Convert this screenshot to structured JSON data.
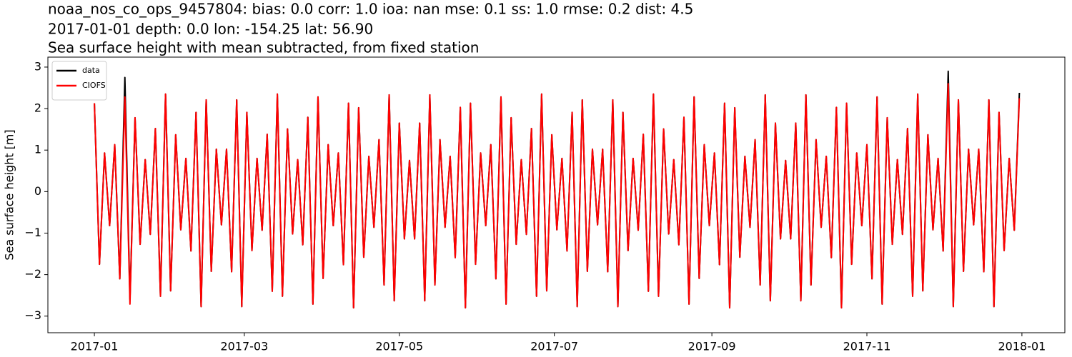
{
  "chart_data": {
    "type": "line",
    "title": [
      "noaa_nos_co_ops_9457804: bias: 0.0  corr: 1.0  ioa: nan  mse: 0.1  ss: 1.0  rmse: 0.2  dist: 4.5",
      "2017-01-01 depth: 0.0 lon: -154.25 lat: 56.90",
      "Sea surface height with mean subtracted, from fixed station"
    ],
    "y_label": "Sea surface height [m]",
    "legend": "upper left",
    "grid": false,
    "xlim": [
      -18.3,
      381.9
    ],
    "xticks": [
      {
        "value": 0,
        "label": "2017-01"
      },
      {
        "value": 59,
        "label": "2017-03"
      },
      {
        "value": 120,
        "label": "2017-05"
      },
      {
        "value": 181,
        "label": "2017-07"
      },
      {
        "value": 243,
        "label": "2017-09"
      },
      {
        "value": 304,
        "label": "2017-11"
      },
      {
        "value": 365,
        "label": "2018-01"
      }
    ],
    "ylim": [
      -3.4,
      3.24
    ],
    "yticks": [
      {
        "value": -3,
        "label": "−3"
      },
      {
        "value": -2,
        "label": "−2"
      },
      {
        "value": -1,
        "label": "−1"
      },
      0,
      1,
      2,
      3
    ],
    "x": [
      0,
      2,
      4,
      6,
      8,
      10,
      12,
      14,
      16,
      18,
      20,
      22,
      24,
      26,
      28,
      30,
      32,
      34,
      36,
      38,
      40,
      42,
      44,
      46,
      48,
      50,
      52,
      54,
      56,
      58,
      60,
      62,
      64,
      66,
      68,
      70,
      72,
      74,
      76,
      78,
      80,
      82,
      84,
      86,
      88,
      90,
      92,
      94,
      96,
      98,
      100,
      102,
      104,
      106,
      108,
      110,
      112,
      114,
      116,
      118,
      120,
      122,
      124,
      126,
      128,
      130,
      132,
      134,
      136,
      138,
      140,
      142,
      144,
      146,
      148,
      150,
      152,
      154,
      156,
      158,
      160,
      162,
      164,
      166,
      168,
      170,
      172,
      174,
      176,
      178,
      180,
      182,
      184,
      186,
      188,
      190,
      192,
      194,
      196,
      198,
      200,
      202,
      204,
      206,
      208,
      210,
      212,
      214,
      216,
      218,
      220,
      222,
      224,
      226,
      228,
      230,
      232,
      234,
      236,
      238,
      240,
      242,
      244,
      246,
      248,
      250,
      252,
      254,
      256,
      258,
      260,
      262,
      264,
      266,
      268,
      270,
      272,
      274,
      276,
      278,
      280,
      282,
      284,
      286,
      288,
      290,
      292,
      294,
      296,
      298,
      300,
      302,
      304,
      306,
      308,
      310,
      312,
      314,
      316,
      318,
      320,
      322,
      324,
      326,
      328,
      330,
      332,
      334,
      336,
      338,
      340,
      342,
      344,
      346,
      348,
      350,
      352,
      354,
      356,
      358,
      360,
      362,
      364
    ],
    "series": [
      {
        "name": "data",
        "color": "#000000",
        "values": [
          2.13,
          -1.75,
          0.93,
          -0.82,
          1.13,
          -2.1,
          2.75,
          -2.6,
          1.78,
          -1.27,
          0.77,
          -1.03,
          1.52,
          -2.52,
          2.35,
          -2.39,
          1.37,
          -0.92,
          0.8,
          -1.43,
          1.91,
          -2.77,
          2.21,
          -1.92,
          1.02,
          -0.8,
          1.02,
          -1.93,
          2.21,
          -2.77,
          1.91,
          -1.42,
          0.8,
          -0.93,
          1.38,
          -2.4,
          2.35,
          -2.52,
          1.51,
          -1.02,
          0.77,
          -1.28,
          1.79,
          -2.71,
          2.28,
          -2.09,
          1.13,
          -0.82,
          0.93,
          -1.76,
          2.13,
          -2.8,
          2.02,
          -1.58,
          0.85,
          -0.86,
          1.25,
          -2.25,
          2.33,
          -2.63,
          1.65,
          -1.14,
          0.75,
          -1.14,
          1.65,
          -2.63,
          2.33,
          -2.25,
          1.25,
          -0.86,
          0.85,
          -1.59,
          2.03,
          -2.8,
          2.13,
          -1.75,
          0.93,
          -0.82,
          1.13,
          -2.1,
          2.28,
          -2.71,
          1.78,
          -1.27,
          0.77,
          -1.03,
          1.52,
          -2.52,
          2.35,
          -2.39,
          1.37,
          -0.92,
          0.8,
          -1.43,
          1.91,
          -2.77,
          2.21,
          -1.92,
          1.02,
          -0.8,
          1.02,
          -1.93,
          2.21,
          -2.77,
          1.91,
          -1.42,
          0.8,
          -0.93,
          1.38,
          -2.4,
          2.35,
          -2.52,
          1.51,
          -1.02,
          0.77,
          -1.28,
          1.79,
          -2.71,
          2.28,
          -2.09,
          1.13,
          -0.82,
          0.93,
          -1.76,
          2.13,
          -2.8,
          2.02,
          -1.58,
          0.85,
          -0.86,
          1.25,
          -2.25,
          2.33,
          -2.63,
          1.65,
          -1.14,
          0.75,
          -1.14,
          1.65,
          -2.63,
          2.33,
          -2.25,
          1.25,
          -0.86,
          0.85,
          -1.59,
          2.03,
          -2.8,
          2.13,
          -1.75,
          0.93,
          -0.82,
          1.13,
          -2.1,
          2.28,
          -2.71,
          1.78,
          -1.27,
          0.77,
          -1.03,
          1.52,
          -2.52,
          2.35,
          -2.39,
          1.37,
          -0.92,
          0.8,
          -1.43,
          2.9,
          -2.77,
          2.21,
          -1.92,
          1.02,
          -0.8,
          1.02,
          -1.93,
          2.21,
          -2.77,
          1.91,
          -1.42,
          0.8,
          -0.93,
          2.38
        ]
      },
      {
        "name": "CIOFS",
        "color": "#ff0000",
        "values": [
          2.13,
          -1.75,
          0.93,
          -0.82,
          1.13,
          -2.1,
          2.28,
          -2.71,
          1.78,
          -1.27,
          0.77,
          -1.03,
          1.52,
          -2.52,
          2.35,
          -2.39,
          1.37,
          -0.92,
          0.8,
          -1.43,
          1.91,
          -2.77,
          2.21,
          -1.92,
          1.02,
          -0.8,
          1.02,
          -1.93,
          2.21,
          -2.77,
          1.91,
          -1.42,
          0.8,
          -0.93,
          1.38,
          -2.4,
          2.35,
          -2.52,
          1.51,
          -1.02,
          0.77,
          -1.28,
          1.79,
          -2.71,
          2.28,
          -2.09,
          1.13,
          -0.82,
          0.93,
          -1.76,
          2.13,
          -2.8,
          2.02,
          -1.58,
          0.85,
          -0.86,
          1.25,
          -2.25,
          2.33,
          -2.63,
          1.65,
          -1.14,
          0.75,
          -1.14,
          1.65,
          -2.63,
          2.33,
          -2.25,
          1.25,
          -0.86,
          0.85,
          -1.59,
          2.03,
          -2.8,
          2.13,
          -1.75,
          0.93,
          -0.82,
          1.13,
          -2.1,
          2.28,
          -2.71,
          1.78,
          -1.27,
          0.77,
          -1.03,
          1.52,
          -2.52,
          2.35,
          -2.39,
          1.37,
          -0.92,
          0.8,
          -1.43,
          1.91,
          -2.77,
          2.21,
          -1.92,
          1.02,
          -0.8,
          1.02,
          -1.93,
          2.21,
          -2.77,
          1.91,
          -1.42,
          0.8,
          -0.93,
          1.38,
          -2.4,
          2.35,
          -2.52,
          1.51,
          -1.02,
          0.77,
          -1.28,
          1.79,
          -2.71,
          2.28,
          -2.09,
          1.13,
          -0.82,
          0.93,
          -1.76,
          2.13,
          -2.8,
          2.02,
          -1.58,
          0.85,
          -0.86,
          1.25,
          -2.25,
          2.33,
          -2.63,
          1.65,
          -1.14,
          0.75,
          -1.14,
          1.65,
          -2.63,
          2.33,
          -2.25,
          1.25,
          -0.86,
          0.85,
          -1.59,
          2.03,
          -2.8,
          2.13,
          -1.75,
          0.93,
          -0.82,
          1.13,
          -2.1,
          2.28,
          -2.71,
          1.78,
          -1.27,
          0.77,
          -1.03,
          1.52,
          -2.52,
          2.35,
          -2.39,
          1.37,
          -0.92,
          0.8,
          -1.43,
          2.6,
          -2.77,
          2.21,
          -1.92,
          1.02,
          -0.8,
          1.02,
          -1.93,
          2.21,
          -2.77,
          1.91,
          -1.42,
          0.8,
          -0.93,
          2.25
        ]
      }
    ]
  }
}
